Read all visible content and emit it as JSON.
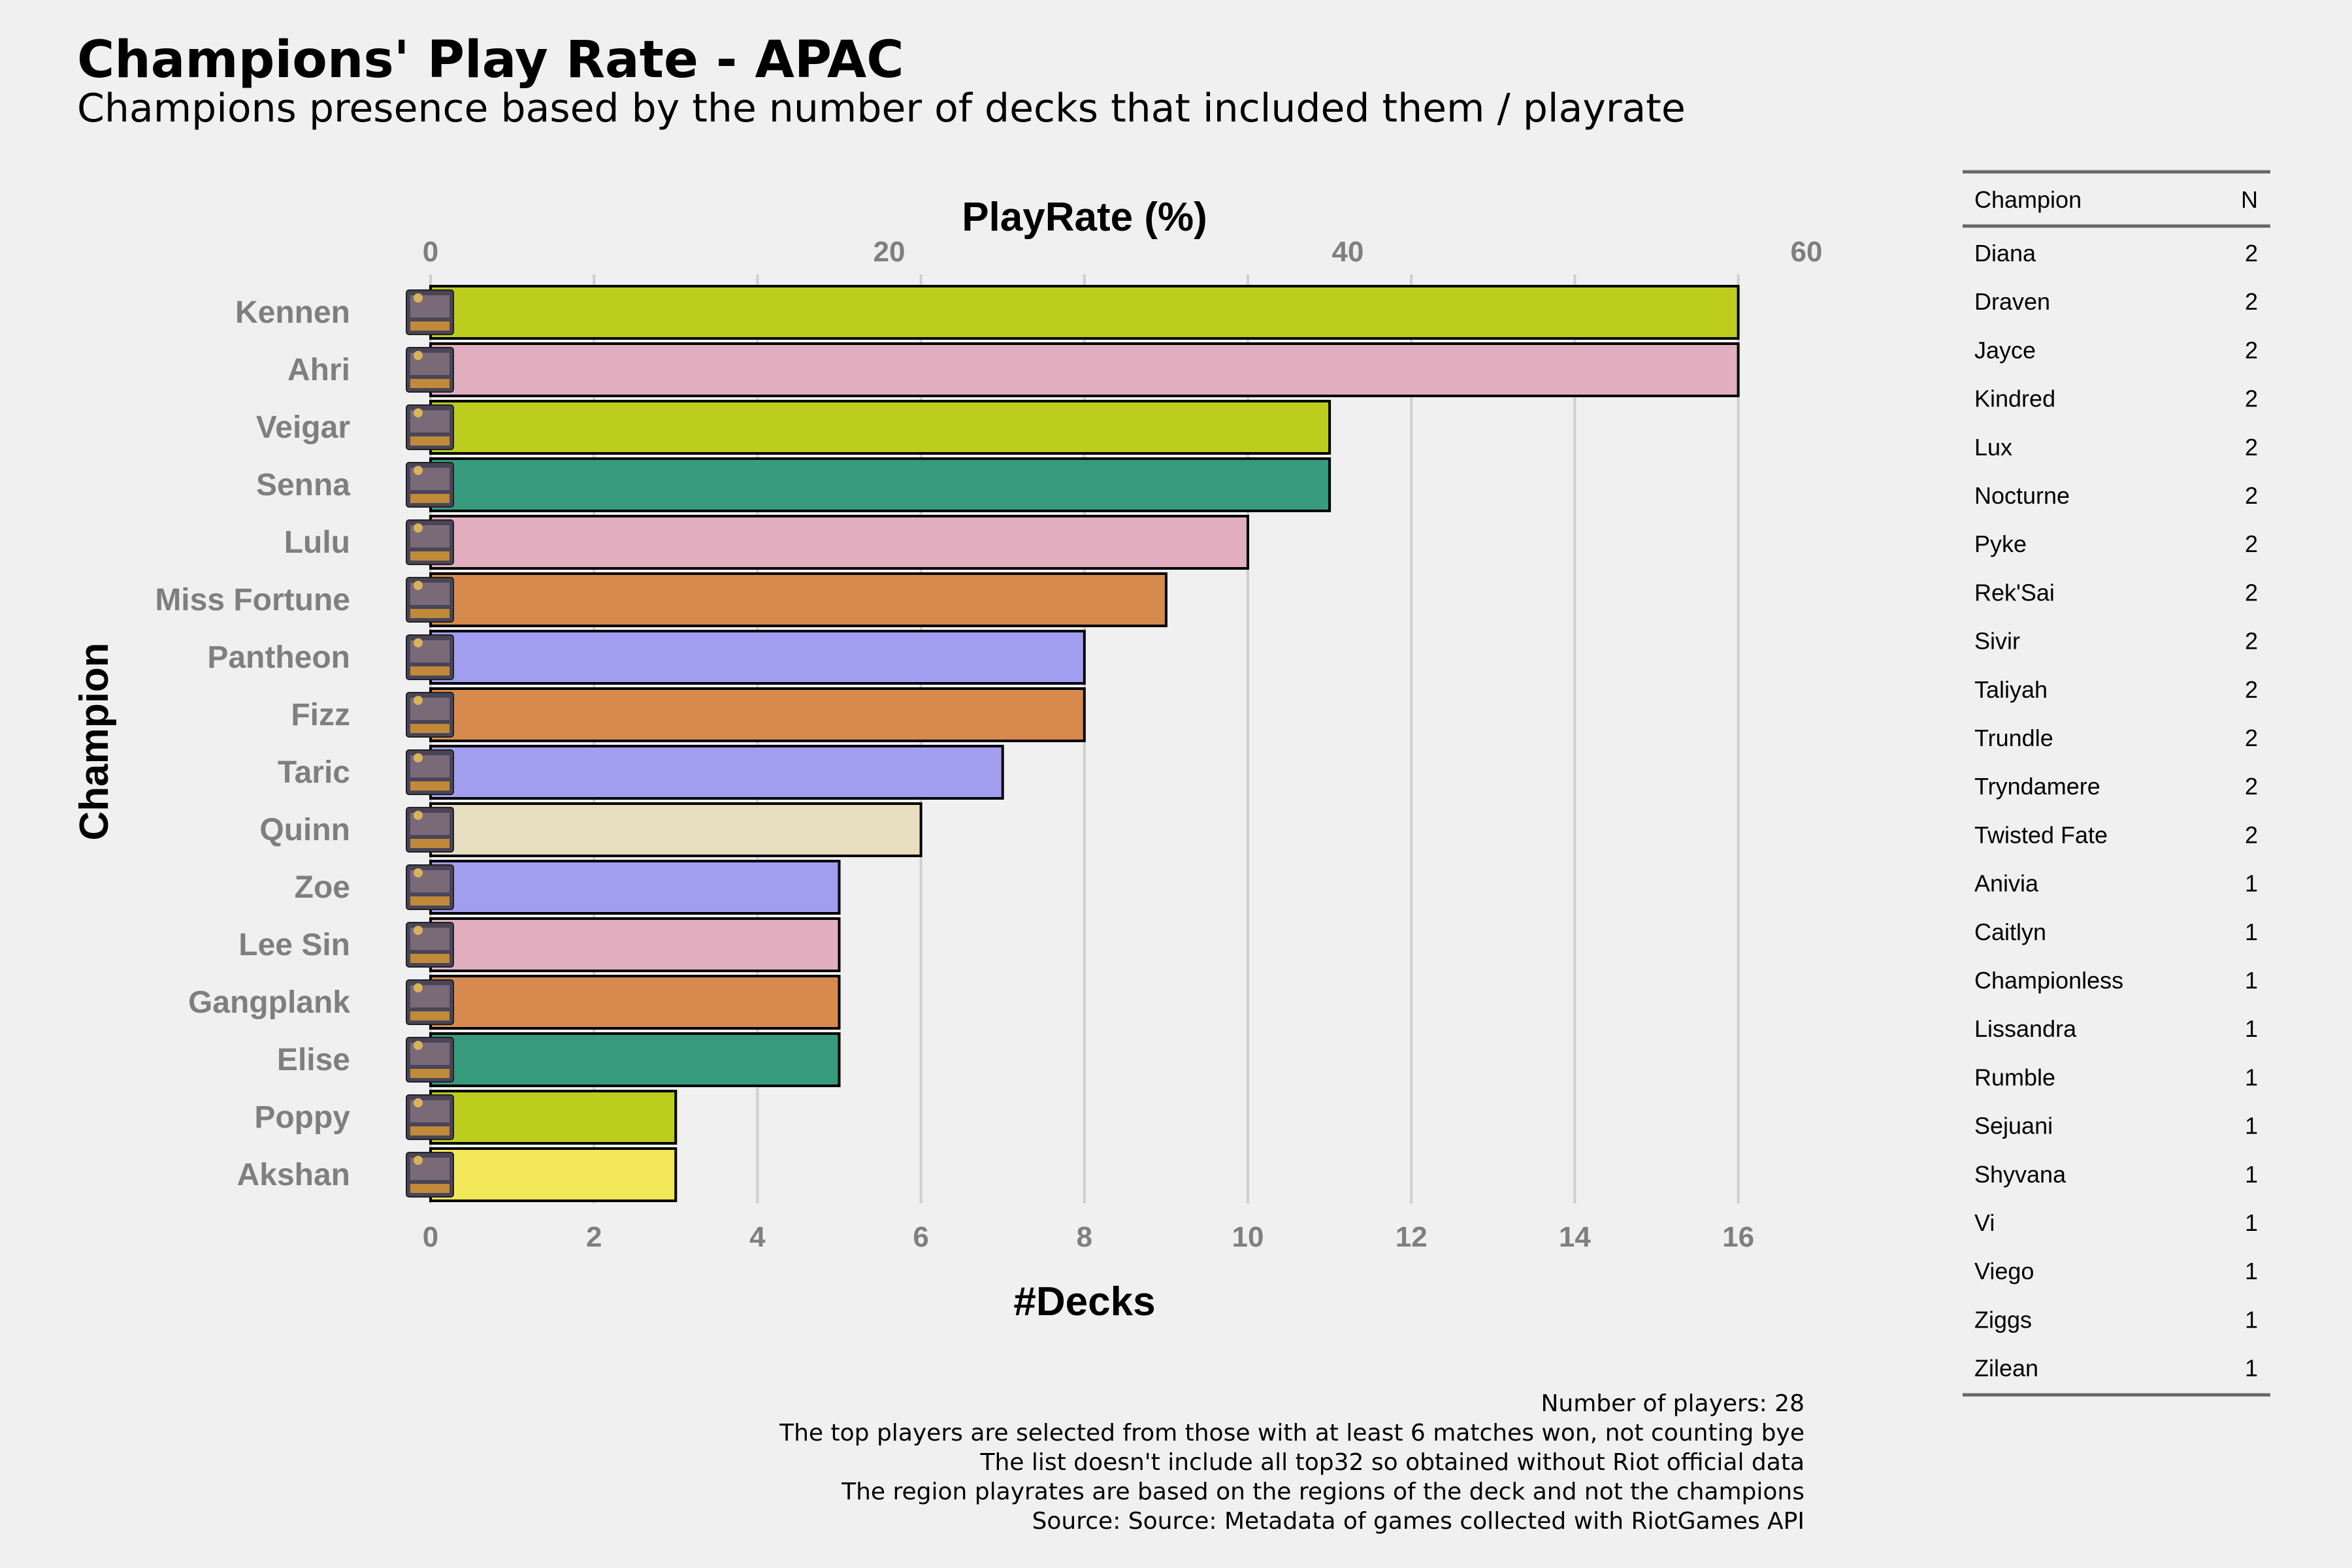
{
  "title": "Champions' Play Rate - APAC",
  "subtitle": "Champions presence based by the number of decks that included them / playrate",
  "chart_data": {
    "type": "bar",
    "orientation": "horizontal",
    "title": "Champions' Play Rate - APAC",
    "subtitle": "Champions presence based by the number of decks that included them / playrate",
    "xlabel": "#Decks",
    "ylabel": "Champion",
    "x2label": "PlayRate (%)",
    "xlim": [
      0,
      17
    ],
    "xticks": [
      0,
      2,
      4,
      6,
      8,
      10,
      12,
      14,
      16
    ],
    "x2ticks": [
      0,
      20,
      40,
      60
    ],
    "categories": [
      "Kennen",
      "Ahri",
      "Veigar",
      "Senna",
      "Lulu",
      "Miss Fortune",
      "Pantheon",
      "Fizz",
      "Taric",
      "Quinn",
      "Zoe",
      "Lee Sin",
      "Gangplank",
      "Elise",
      "Poppy",
      "Akshan"
    ],
    "values": [
      16,
      16,
      11,
      11,
      10,
      9,
      8,
      8,
      7,
      6,
      5,
      5,
      5,
      5,
      3,
      3
    ],
    "colors": [
      "#bccd1e",
      "#e1afc0",
      "#bccd1e",
      "#359b7c",
      "#e1afc0",
      "#d68a4e",
      "#a19ef0",
      "#d68a4e",
      "#a19ef0",
      "#e8dfc0",
      "#a19ef0",
      "#e1afc0",
      "#d68a4e",
      "#359b7c",
      "#bccd1e",
      "#f2e85a"
    ],
    "grid": true,
    "legend": "none"
  },
  "side_table": {
    "headers": [
      "Champion",
      "N"
    ],
    "rows": [
      [
        "Diana",
        "2"
      ],
      [
        "Draven",
        "2"
      ],
      [
        "Jayce",
        "2"
      ],
      [
        "Kindred",
        "2"
      ],
      [
        "Lux",
        "2"
      ],
      [
        "Nocturne",
        "2"
      ],
      [
        "Pyke",
        "2"
      ],
      [
        "Rek'Sai",
        "2"
      ],
      [
        "Sivir",
        "2"
      ],
      [
        "Taliyah",
        "2"
      ],
      [
        "Trundle",
        "2"
      ],
      [
        "Tryndamere",
        "2"
      ],
      [
        "Twisted Fate",
        "2"
      ],
      [
        "Anivia",
        "1"
      ],
      [
        "Caitlyn",
        "1"
      ],
      [
        "Championless",
        "1"
      ],
      [
        "Lissandra",
        "1"
      ],
      [
        "Rumble",
        "1"
      ],
      [
        "Sejuani",
        "1"
      ],
      [
        "Shyvana",
        "1"
      ],
      [
        "Vi",
        "1"
      ],
      [
        "Viego",
        "1"
      ],
      [
        "Ziggs",
        "1"
      ],
      [
        "Zilean",
        "1"
      ]
    ]
  },
  "caption": [
    "Number of players: 28",
    "The top players are selected from those with at least 6 matches won, not counting bye",
    "The list doesn't include all top32 so obtained without Riot official data",
    "The region playrates are based on the regions of the deck and not the champions",
    "Source: Source: Metadata of games collected with RiotGames API"
  ]
}
